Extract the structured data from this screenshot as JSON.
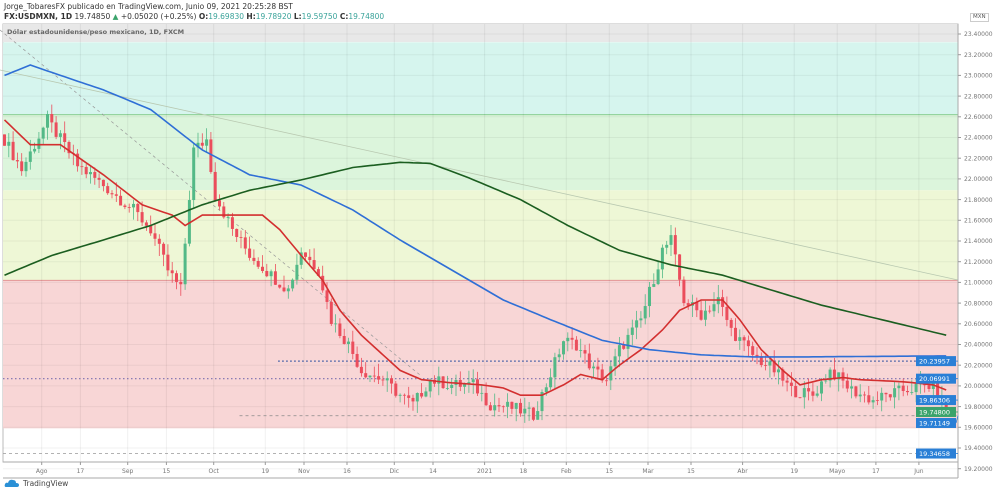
{
  "header": {
    "publish_line": "Jorge_TobaresFX publicado en TradingView.com, Junio 09, 2021 20:25:28 BST",
    "author": "Jorge_TobaresFX",
    "symbol": "FX:USDMXN, 1D",
    "last": "19.74850",
    "change": "+0.05020 (+0.25%)",
    "o_label": "O:",
    "o": "19.69830",
    "h_label": "H:",
    "h": "19.78920",
    "l_label": "L:",
    "l": "19.59750",
    "c_label": "C:",
    "c": "19.74800"
  },
  "chart_title": "Dólar estadounidense/peso mexicano, 1D, FXCM",
  "currency_badge": "MXN",
  "footer_logo": "TradingView",
  "colors": {
    "up": "#53b987",
    "down": "#eb4d5c",
    "ma_fast": "#d32f2f",
    "ma_mid": "#2f6fd6",
    "ma_slow": "#1b5e20",
    "label_blue": "#2a7fd6",
    "label_green": "#3aa36b"
  },
  "chart_data": {
    "type": "candlestick",
    "title": "Dólar estadounidense/peso mexicano, 1D, FXCM",
    "ylim": [
      19.2,
      23.5
    ],
    "y_ticks": [
      "19.20000",
      "19.40000",
      "19.60000",
      "19.80000",
      "20.00000",
      "20.20000",
      "20.40000",
      "20.60000",
      "20.80000",
      "21.00000",
      "21.20000",
      "21.40000",
      "21.60000",
      "21.80000",
      "22.00000",
      "22.20000",
      "22.40000",
      "22.60000",
      "22.80000",
      "23.00000",
      "23.20000",
      "23.40000"
    ],
    "x_ticks": [
      {
        "label": "Ago",
        "day": 9
      },
      {
        "label": "17",
        "day": 18
      },
      {
        "label": "Sep",
        "day": 29
      },
      {
        "label": "15",
        "day": 38
      },
      {
        "label": "Oct",
        "day": 49
      },
      {
        "label": "19",
        "day": 61
      },
      {
        "label": "Nov",
        "day": 70
      },
      {
        "label": "16",
        "day": 80
      },
      {
        "label": "Dic",
        "day": 91
      },
      {
        "label": "14",
        "day": 100
      },
      {
        "label": "2021",
        "day": 112
      },
      {
        "label": "18",
        "day": 121
      },
      {
        "label": "Feb",
        "day": 131
      },
      {
        "label": "15",
        "day": 141
      },
      {
        "label": "Mar",
        "day": 150
      },
      {
        "label": "15",
        "day": 160
      },
      {
        "label": "Abr",
        "day": 172
      },
      {
        "label": "19",
        "day": 184
      },
      {
        "label": "Mayo",
        "day": 194
      },
      {
        "label": "17",
        "day": 203
      },
      {
        "label": "Jun",
        "day": 213
      },
      {
        "label": "14",
        "day": 223
      }
    ],
    "close_path": {
      "days": [
        0,
        4,
        10,
        17,
        23,
        30,
        34,
        38,
        41,
        44,
        47,
        49,
        53,
        57,
        62,
        66,
        69,
        73,
        76,
        80,
        83,
        88,
        92,
        95,
        99,
        104,
        109,
        113,
        118,
        123,
        126,
        130,
        133,
        137,
        140,
        143,
        148,
        153,
        155,
        158,
        162,
        166,
        169,
        174,
        179,
        183,
        188,
        192,
        197,
        202,
        209,
        216,
        219
      ],
      "values": [
        22.38,
        22.09,
        22.57,
        22.13,
        21.94,
        21.7,
        21.51,
        21.12,
        20.93,
        22.28,
        22.38,
        21.84,
        21.51,
        21.27,
        21.07,
        20.93,
        21.31,
        21.12,
        20.64,
        20.4,
        20.15,
        20.06,
        19.91,
        19.82,
        20.06,
        20.01,
        20.01,
        19.82,
        19.79,
        19.72,
        20.01,
        20.44,
        20.4,
        20.15,
        20.06,
        20.35,
        20.64,
        21.31,
        21.41,
        20.83,
        20.69,
        20.83,
        20.54,
        20.3,
        20.15,
        19.96,
        19.91,
        20.15,
        19.96,
        19.86,
        19.96,
        20.01,
        19.75
      ]
    },
    "series": [
      {
        "name": "MA fast",
        "color": "#d32f2f",
        "days": [
          0,
          6,
          13,
          23,
          32,
          39,
          42,
          46,
          53,
          60,
          64,
          69,
          74,
          78,
          83,
          88,
          92,
          97,
          104,
          111,
          116,
          120,
          125,
          130,
          134,
          139,
          143,
          148,
          153,
          157,
          162,
          167,
          171,
          176,
          181,
          185,
          190,
          195,
          199,
          209,
          216,
          219
        ],
        "values": [
          22.57,
          22.33,
          22.33,
          22.04,
          21.75,
          21.65,
          21.55,
          21.65,
          21.65,
          21.65,
          21.51,
          21.26,
          21.02,
          20.73,
          20.49,
          20.3,
          20.15,
          20.06,
          20.03,
          20.01,
          19.98,
          19.91,
          19.91,
          20.01,
          20.11,
          20.06,
          20.2,
          20.35,
          20.54,
          20.73,
          20.83,
          20.83,
          20.64,
          20.35,
          20.15,
          20.01,
          20.06,
          20.08,
          20.06,
          20.04,
          20.01,
          19.96
        ]
      },
      {
        "name": "MA mid",
        "color": "#2f6fd6",
        "days": [
          0,
          6,
          13,
          23,
          34,
          46,
          57,
          69,
          81,
          92,
          104,
          116,
          127,
          139,
          150,
          162,
          174,
          185,
          219
        ],
        "values": [
          23.0,
          23.1,
          23.0,
          22.86,
          22.67,
          22.28,
          22.04,
          21.94,
          21.7,
          21.41,
          21.12,
          20.83,
          20.64,
          20.44,
          20.35,
          20.3,
          20.28,
          20.28,
          20.29
        ]
      },
      {
        "name": "MA slow",
        "color": "#1b5e20",
        "days": [
          0,
          11,
          23,
          34,
          46,
          57,
          69,
          81,
          92,
          99,
          108,
          120,
          131,
          143,
          155,
          167,
          178,
          190,
          202,
          219
        ],
        "values": [
          21.07,
          21.26,
          21.41,
          21.55,
          21.75,
          21.89,
          21.99,
          22.11,
          22.16,
          22.15,
          22.01,
          21.8,
          21.55,
          21.31,
          21.17,
          21.07,
          20.93,
          20.78,
          20.66,
          20.49
        ]
      }
    ],
    "zones": [
      {
        "from": 22.62,
        "to": 23.32,
        "color": "#d6f5ee"
      },
      {
        "from": 21.89,
        "to": 22.62,
        "color": "#dcf5dc"
      },
      {
        "from": 21.02,
        "to": 21.89,
        "color": "#eef7d6"
      },
      {
        "from": 19.59,
        "to": 21.02,
        "color": "#f8d6d6"
      }
    ],
    "levels": [
      {
        "value": "20.23957",
        "color": "#2a4fa0",
        "style": "dotted",
        "label_color": "#2a7fd6",
        "from_day": 64
      },
      {
        "value": "20.06991",
        "color": "#7a6fb0",
        "style": "dotted",
        "label_color": "#2a7fd6",
        "from_day": 0
      },
      {
        "value": "19.86306",
        "label_only": true,
        "label_color": "#2a7fd6"
      },
      {
        "value": "19.74800",
        "label_only": true,
        "label_color": "#3aa36b"
      },
      {
        "value": "19.71149",
        "color": "#888",
        "style": "dashed",
        "label_color": "#2a7fd6",
        "from_day": 55
      },
      {
        "value": "19.34658",
        "color": "#999",
        "style": "dashed",
        "label_color": "#2a7fd6",
        "from_day": 0
      }
    ]
  }
}
